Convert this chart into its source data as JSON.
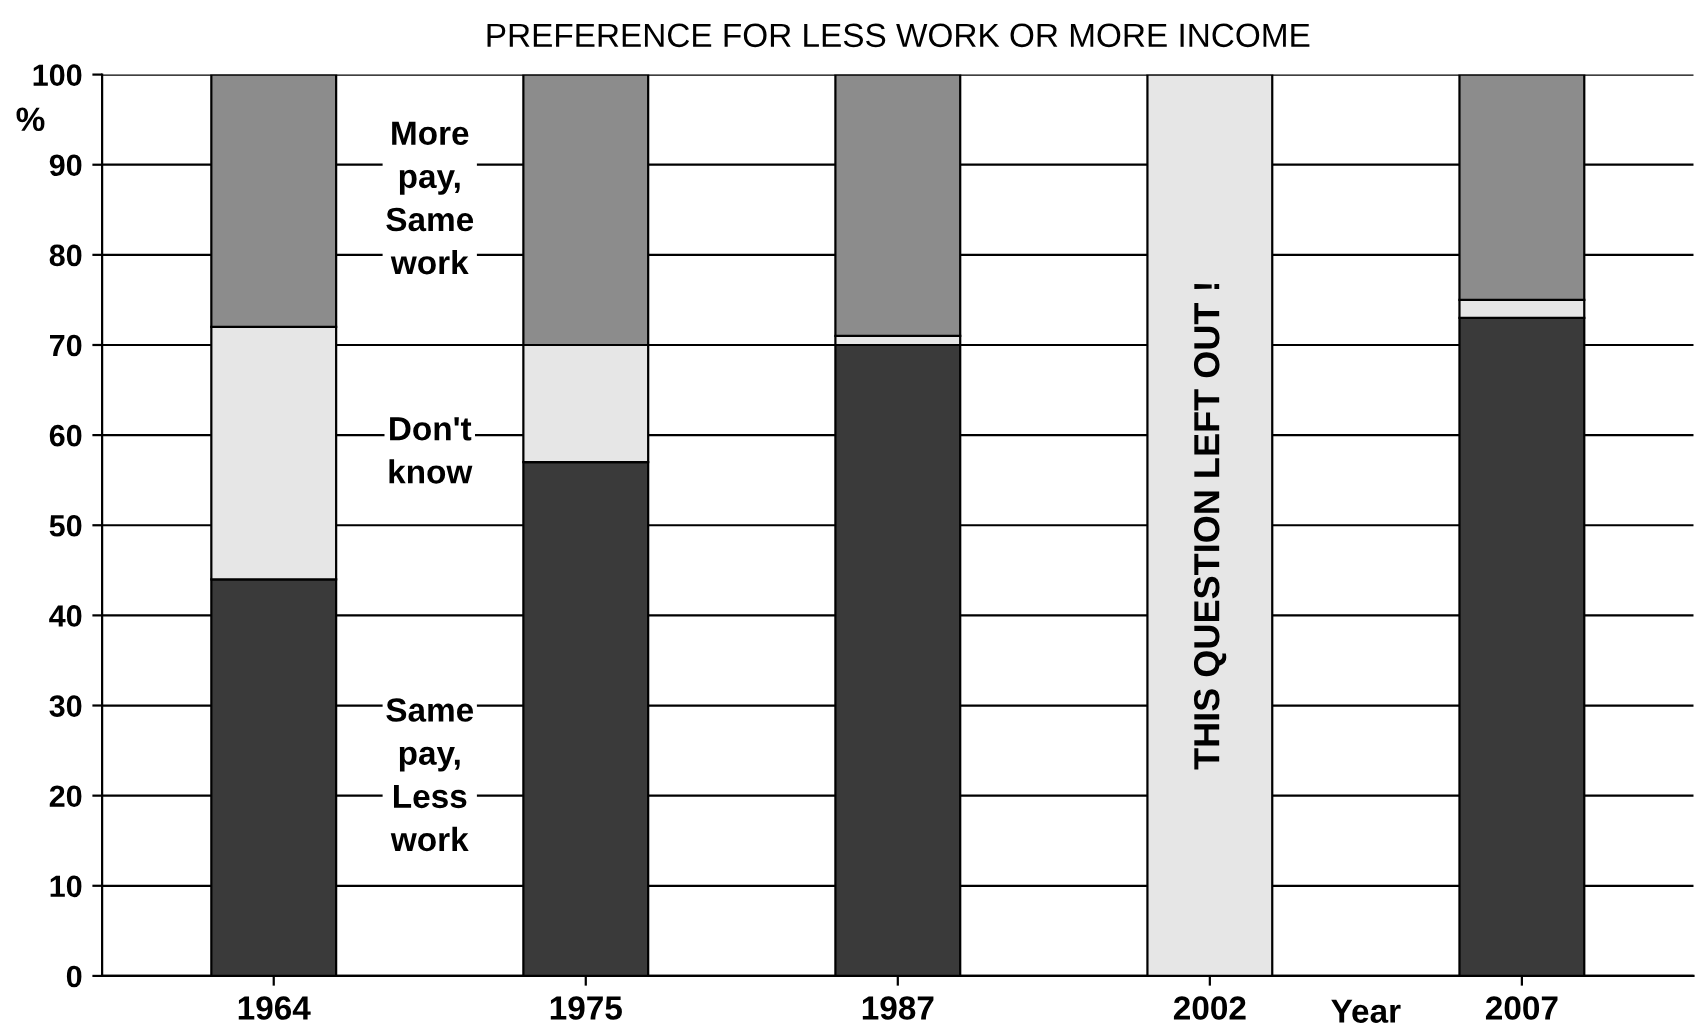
{
  "chart_data": {
    "type": "bar",
    "title": "PREFERENCE FOR LESS WORK OR MORE INCOME",
    "xlabel": "Year",
    "ylabel": "%",
    "categories": [
      "1964",
      "1975",
      "1987",
      "2002",
      "2007"
    ],
    "stacked": true,
    "series": [
      {
        "name": "Same pay, Less work",
        "color": "#3a3a3a",
        "values": [
          44,
          57,
          70,
          null,
          73
        ]
      },
      {
        "name": "Don't know",
        "color": "#e6e6e6",
        "values": [
          28,
          13,
          1,
          null,
          2
        ]
      },
      {
        "name": "More pay, Same work",
        "color": "#8c8c8c",
        "values": [
          28,
          30,
          29,
          null,
          25
        ]
      },
      {
        "color": "#e6e6e6",
        "values": [
          null,
          null,
          null,
          100,
          null
        ]
      }
    ],
    "annotations": [
      "THIS QUESTION LEFT OUT !"
    ],
    "ylim": [
      0,
      100
    ],
    "yticks": [
      0,
      10,
      20,
      30,
      40,
      50,
      60,
      70,
      80,
      90,
      100
    ],
    "grid": "y",
    "legend": false
  }
}
